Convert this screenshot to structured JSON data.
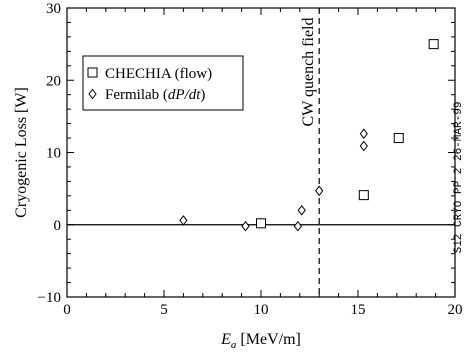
{
  "chart_data": {
    "type": "scatter",
    "title": "",
    "xlabel_main": "E",
    "xlabel_sub": "a",
    "xlabel_unit": " [MeV/m]",
    "ylabel": "Cryogenic Loss [W]",
    "xlim": [
      0,
      20
    ],
    "ylim": [
      -10,
      30
    ],
    "x_ticks": [
      "0",
      "5",
      "10",
      "15",
      "20"
    ],
    "y_ticks": [
      "−10",
      "0",
      "10",
      "20",
      "30"
    ],
    "legend_position": "top-left",
    "series": [
      {
        "name": "CHECHIA (flow)",
        "marker": "square",
        "x": [
          10.0,
          15.3,
          17.1,
          18.9
        ],
        "y": [
          0.2,
          4.1,
          12.0,
          25.0
        ]
      },
      {
        "name_prefix": "Fermilab (",
        "name_italic": "dP/dt",
        "name_suffix": ")",
        "marker": "diamond",
        "x": [
          6.0,
          9.2,
          11.9,
          12.1,
          13.0,
          15.3,
          15.3
        ],
        "y": [
          0.6,
          -0.2,
          -0.2,
          2.0,
          4.7,
          10.9,
          12.6
        ]
      }
    ],
    "reference_lines": {
      "horizontal_y": 0,
      "vertical_x": 13.0,
      "vertical_label": "CW quench field"
    },
    "side_stamp": "S12 CRYO PP 2 26-MAR-99"
  }
}
